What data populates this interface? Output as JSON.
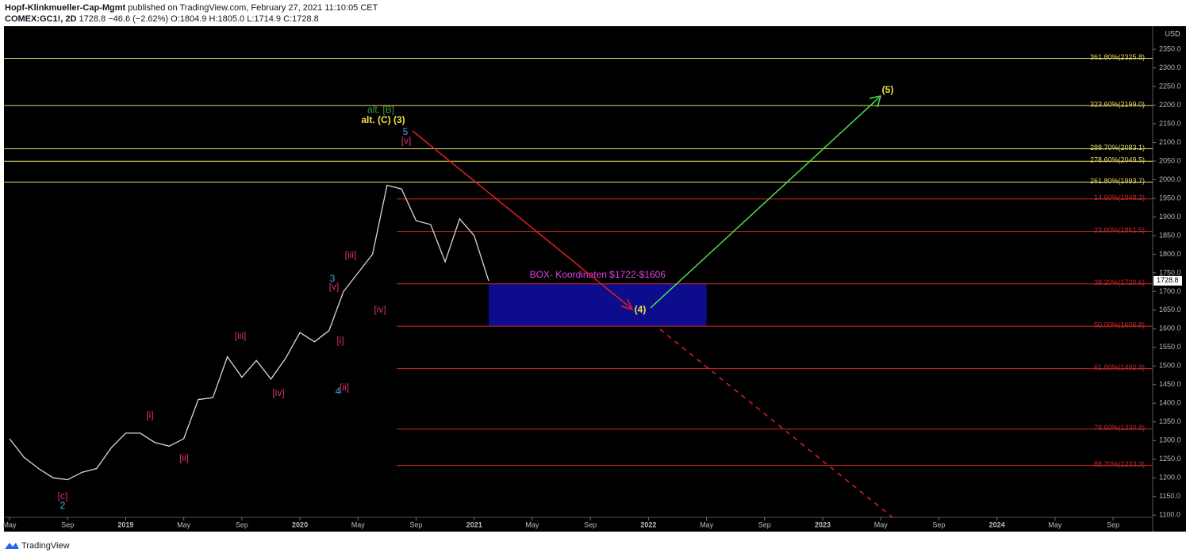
{
  "header": {
    "author": "Hopf-Klinkmueller-Cap-Mgmt",
    "published": "published on TradingView.com, February 27, 2021 11:10:05 CET",
    "symbol": "COMEX:GC1!, 2D",
    "last": "1728.8",
    "change": "−46.6 (−2.62%)",
    "open": "O:1804.9",
    "high": "H:1805.0",
    "low": "L:1714.9",
    "close": "C:1728.8"
  },
  "footer": {
    "brand": "TradingView"
  },
  "chart_data": {
    "type": "line",
    "currency": "USD",
    "x": [
      "2018-05",
      "2018-06",
      "2018-07",
      "2018-08",
      "2018-09",
      "2018-10",
      "2018-11",
      "2018-12",
      "2019-01",
      "2019-02",
      "2019-03",
      "2019-04",
      "2019-05",
      "2019-06",
      "2019-07",
      "2019-08",
      "2019-09",
      "2019-10",
      "2019-11",
      "2019-12",
      "2020-01",
      "2020-02",
      "2020-03",
      "2020-04",
      "2020-05",
      "2020-06",
      "2020-07",
      "2020-08",
      "2020-09",
      "2020-10",
      "2020-11",
      "2020-12",
      "2021-01",
      "2021-02"
    ],
    "series": [
      {
        "name": "COMEX:GC1!",
        "color": "#d8d8d8",
        "values": [
          1305,
          1255,
          1225,
          1200,
          1195,
          1215,
          1225,
          1280,
          1320,
          1320,
          1295,
          1285,
          1305,
          1410,
          1415,
          1525,
          1470,
          1515,
          1465,
          1520,
          1590,
          1565,
          1595,
          1700,
          1750,
          1800,
          1985,
          1975,
          1890,
          1880,
          1780,
          1895,
          1850,
          1728.8
        ]
      }
    ],
    "last_price": {
      "value": 1728.8,
      "label": "1728.8"
    },
    "xlim": [
      "2018-05",
      "2024-12"
    ],
    "xticks": [
      {
        "value": "2018-05",
        "label": "May"
      },
      {
        "value": "2018-09",
        "label": "Sep"
      },
      {
        "value": "2019-01",
        "label": "2019"
      },
      {
        "value": "2019-05",
        "label": "May"
      },
      {
        "value": "2019-09",
        "label": "Sep"
      },
      {
        "value": "2020-01",
        "label": "2020"
      },
      {
        "value": "2020-05",
        "label": "May"
      },
      {
        "value": "2020-09",
        "label": "Sep"
      },
      {
        "value": "2021-01",
        "label": "2021"
      },
      {
        "value": "2021-05",
        "label": "May"
      },
      {
        "value": "2021-09",
        "label": "Sep"
      },
      {
        "value": "2022-01",
        "label": "2022"
      },
      {
        "value": "2022-05",
        "label": "May"
      },
      {
        "value": "2022-09",
        "label": "Sep"
      },
      {
        "value": "2023-01",
        "label": "2023"
      },
      {
        "value": "2023-05",
        "label": "May"
      },
      {
        "value": "2023-09",
        "label": "Sep"
      },
      {
        "value": "2024-01",
        "label": "2024"
      },
      {
        "value": "2024-05",
        "label": "May"
      },
      {
        "value": "2024-09",
        "label": "Sep"
      }
    ],
    "ylim": [
      1094,
      2412
    ],
    "yticks": [
      {
        "value": 1100,
        "label": "1100.0"
      },
      {
        "value": 1150,
        "label": "1150.0"
      },
      {
        "value": 1200,
        "label": "1200.0"
      },
      {
        "value": 1250,
        "label": "1250.0"
      },
      {
        "value": 1300,
        "label": "1300.0"
      },
      {
        "value": 1350,
        "label": "1350.0"
      },
      {
        "value": 1400,
        "label": "1400.0"
      },
      {
        "value": 1450,
        "label": "1450.0"
      },
      {
        "value": 1500,
        "label": "1500.0"
      },
      {
        "value": 1550,
        "label": "1550.0"
      },
      {
        "value": 1600,
        "label": "1600.0"
      },
      {
        "value": 1650,
        "label": "1650.0"
      },
      {
        "value": 1700,
        "label": "1700.0"
      },
      {
        "value": 1750,
        "label": "1750.0"
      },
      {
        "value": 1800,
        "label": "1800.0"
      },
      {
        "value": 1850,
        "label": "1850.0"
      },
      {
        "value": 1900,
        "label": "1900.0"
      },
      {
        "value": 1950,
        "label": "1950.0"
      },
      {
        "value": 2000,
        "label": "2000.0"
      },
      {
        "value": 2050,
        "label": "2050.0"
      },
      {
        "value": 2100,
        "label": "2100.0"
      },
      {
        "value": 2150,
        "label": "2150.0"
      },
      {
        "value": 2200,
        "label": "2200.0"
      },
      {
        "value": 2250,
        "label": "2250.0"
      },
      {
        "value": 2300,
        "label": "2300.0"
      },
      {
        "value": 2350,
        "label": "2350.0"
      }
    ],
    "levels": [
      {
        "value": 2325.8,
        "label": "361.80%(2325.8)",
        "color": "#e8dc6a"
      },
      {
        "value": 2199.0,
        "label": "323.60%(2199.0)",
        "color": "#e8dc6a"
      },
      {
        "value": 2083.1,
        "label": "288.70%(2083.1)",
        "color": "#e8dc6a"
      },
      {
        "value": 2049.5,
        "label": "278.60%(2049.5)",
        "color": "#e8dc6a"
      },
      {
        "value": 1993.7,
        "label": "261.80%(1993.7)",
        "color": "#e8dc6a"
      },
      {
        "value": 1948.3,
        "label": "14.60%(1948.3)",
        "color": "#d02828"
      },
      {
        "value": 1861.5,
        "label": "23.60%(1861.5)",
        "color": "#d02828"
      },
      {
        "value": 1720.6,
        "label": "38.20%(1720.6)",
        "color": "#d02828"
      },
      {
        "value": 1606.8,
        "label": "50.00%(1606.8)",
        "color": "#d02828"
      },
      {
        "value": 1492.9,
        "label": "61.80%(1492.9)",
        "color": "#d02828"
      },
      {
        "value": 1330.8,
        "label": "78.60%(1330.8)",
        "color": "#d02828"
      },
      {
        "value": 1233.3,
        "label": "88.70%(1233.3)",
        "color": "#d02828"
      }
    ],
    "box": {
      "label": "BOX- Koordinaten $1722-$1606",
      "top": 1722,
      "bottom": 1606,
      "x": [
        "2021-02",
        "2022-05"
      ],
      "color": "#0c0c8c"
    },
    "annotations": [
      "[c]",
      "2",
      "[i]",
      "[ii]",
      "[iii]",
      "[iv]",
      "[v]",
      "3",
      "[i]",
      "[ii]",
      "4",
      "[iii]",
      "[iv]",
      "[v]",
      "5",
      "alt. (C) (3)",
      "alt. [B]",
      "(4)",
      "(5)"
    ]
  }
}
